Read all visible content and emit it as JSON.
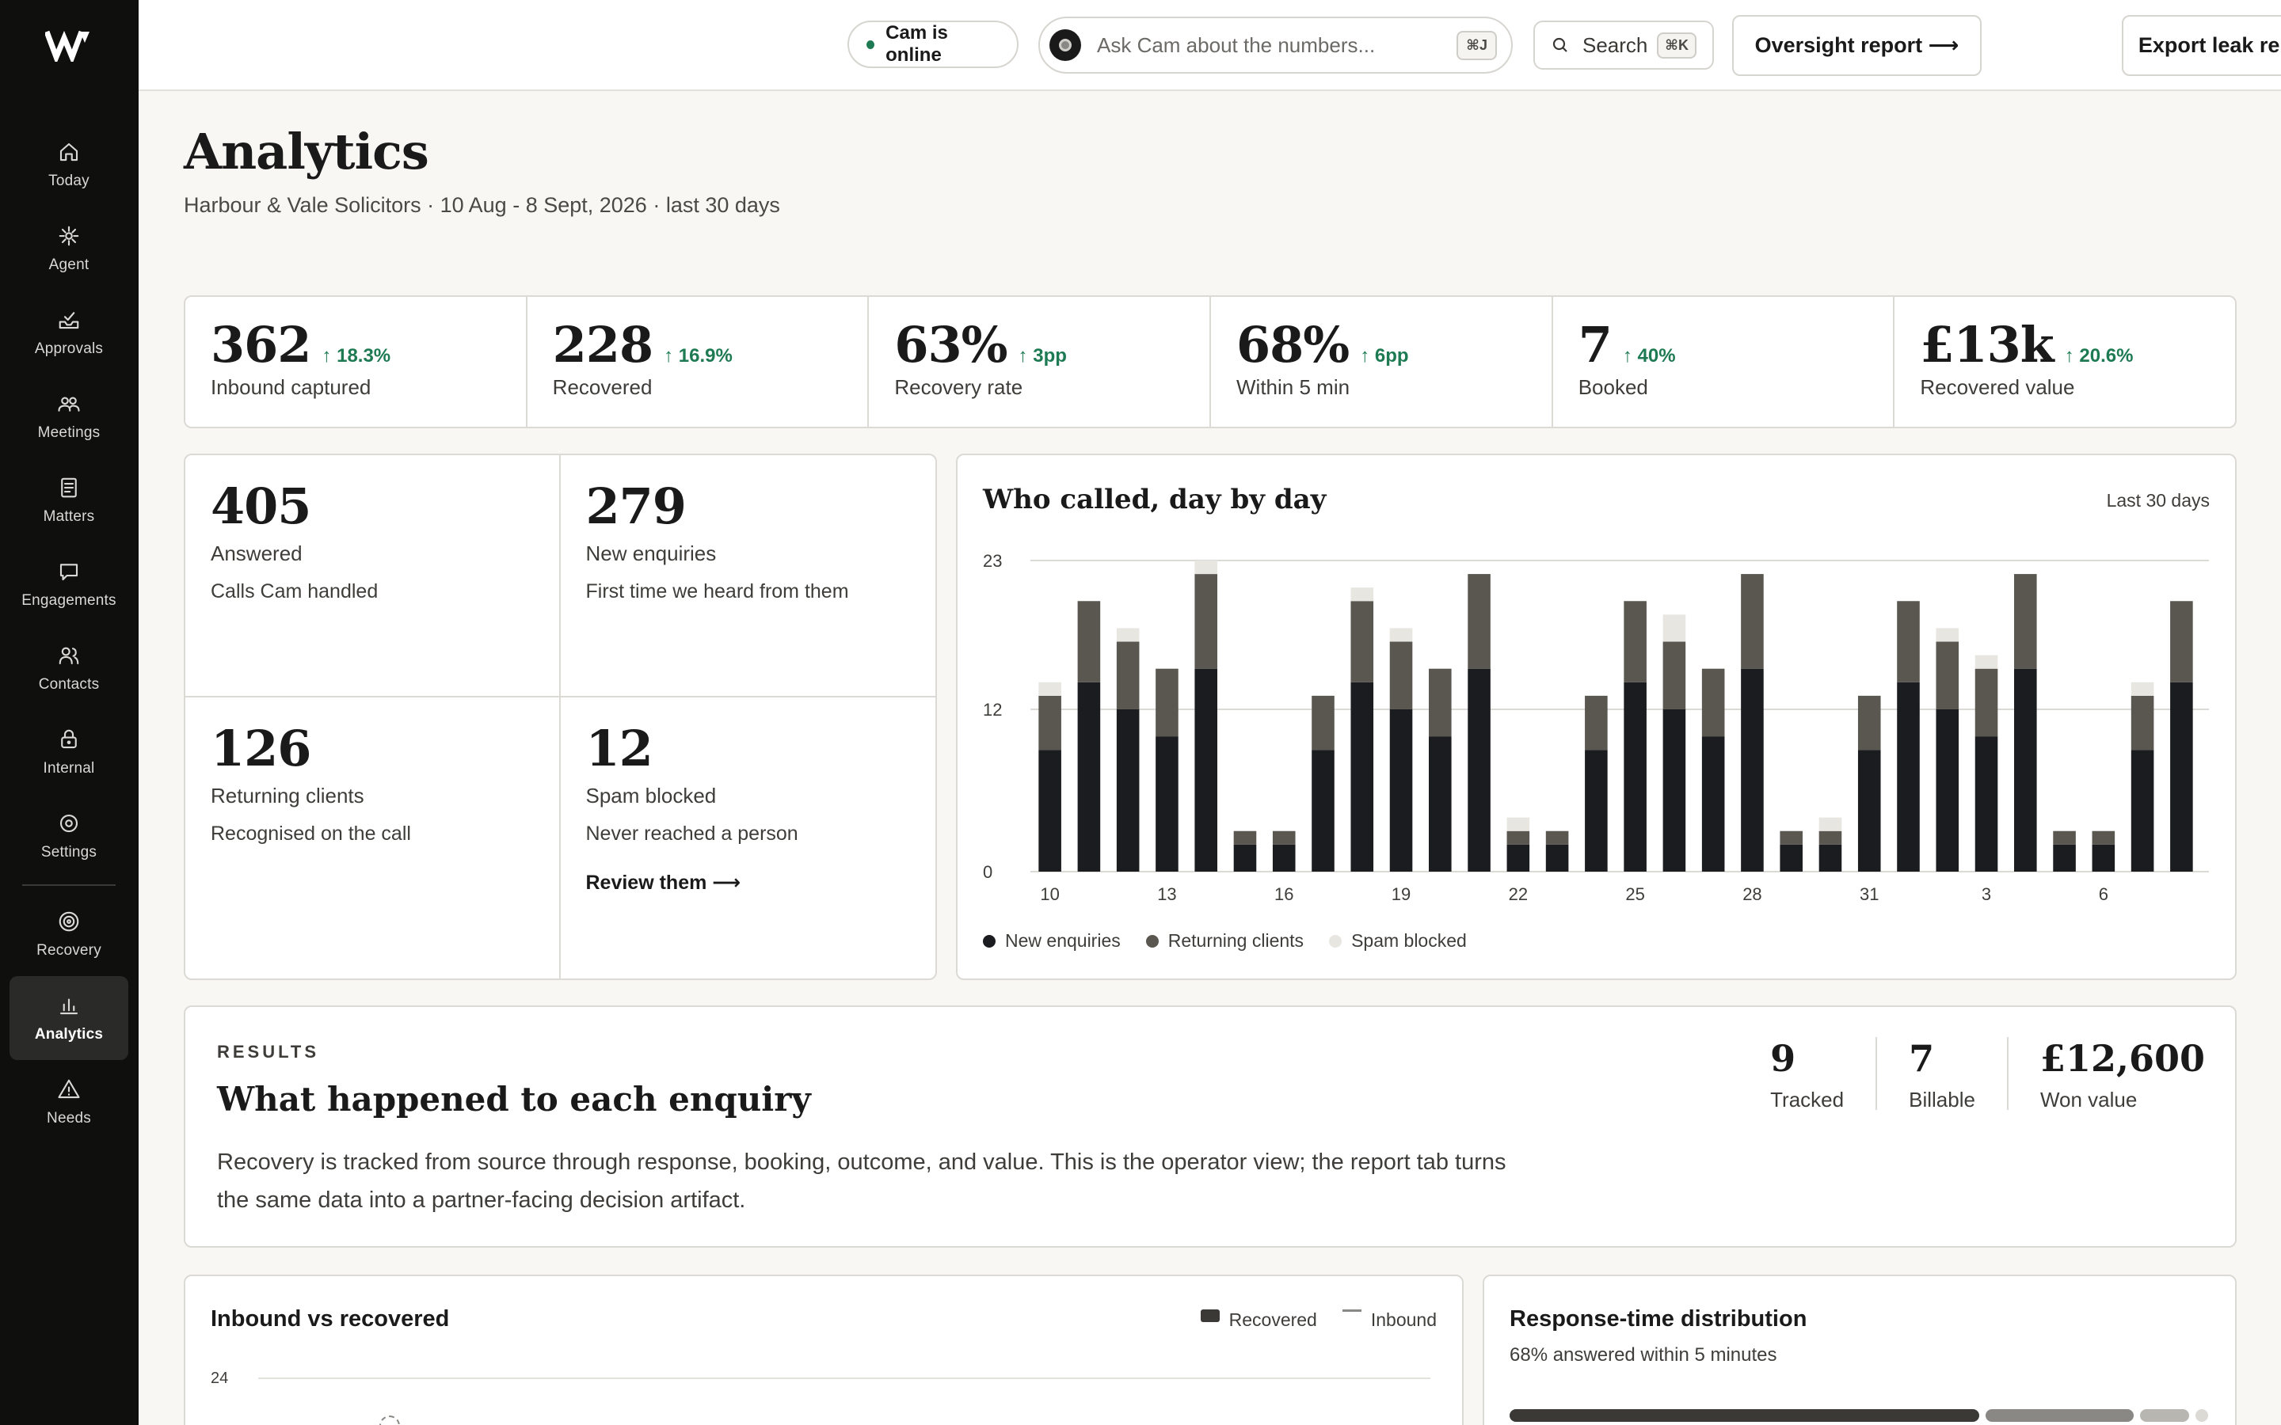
{
  "sidebar": {
    "items": [
      {
        "label": "Today",
        "icon": "home-icon"
      },
      {
        "label": "Agent",
        "icon": "sparkle-icon"
      },
      {
        "label": "Approvals",
        "icon": "inbox-icon"
      },
      {
        "label": "Meetings",
        "icon": "people-icon"
      },
      {
        "label": "Matters",
        "icon": "document-icon"
      },
      {
        "label": "Engagements",
        "icon": "chat-icon"
      },
      {
        "label": "Contacts",
        "icon": "contacts-icon"
      },
      {
        "label": "Internal",
        "icon": "lock-icon"
      },
      {
        "label": "Settings",
        "icon": "gear-icon"
      }
    ],
    "secondary": [
      {
        "label": "Recovery",
        "icon": "target-icon"
      },
      {
        "label": "Analytics",
        "icon": "bar-chart-icon",
        "active": true
      },
      {
        "label": "Needs",
        "icon": "warning-icon"
      }
    ]
  },
  "topbar": {
    "status": "Cam is online",
    "ask_placeholder": "Ask Cam about the numbers...",
    "ask_shortcut": "⌘J",
    "search_label": "Search",
    "search_shortcut": "⌘K",
    "oversight_button": "Oversight report ⟶",
    "export_button": "Export leak report ⟶"
  },
  "header": {
    "title": "Analytics",
    "subtitle": "Harbour & Vale Solicitors · 10 Aug - 8 Sept, 2026 · last 30 days"
  },
  "kpis": [
    {
      "value": "362",
      "delta": "↑ 18.3%",
      "label": "Inbound captured"
    },
    {
      "value": "228",
      "delta": "↑ 16.9%",
      "label": "Recovered"
    },
    {
      "value": "63%",
      "delta": "↑ 3pp",
      "label": "Recovery rate"
    },
    {
      "value": "68%",
      "delta": "↑ 6pp",
      "label": "Within 5 min"
    },
    {
      "value": "7",
      "delta": "↑ 40%",
      "label": "Booked"
    },
    {
      "value": "£13k",
      "delta": "↑ 20.6%",
      "label": "Recovered value"
    }
  ],
  "stats": [
    {
      "value": "405",
      "label": "Answered",
      "desc": "Calls Cam handled"
    },
    {
      "value": "279",
      "label": "New enquiries",
      "desc": "First time we heard from them"
    },
    {
      "value": "126",
      "label": "Returning clients",
      "desc": "Recognised on the call"
    },
    {
      "value": "12",
      "label": "Spam blocked",
      "desc": "Never reached a person",
      "link": "Review them ⟶"
    }
  ],
  "chart": {
    "title": "Who called, day by day",
    "range": "Last 30 days"
  },
  "chart_data": {
    "type": "bar",
    "stacked": true,
    "title": "Who called, day by day",
    "x": [
      "10",
      "11",
      "12",
      "13",
      "14",
      "15",
      "16",
      "17",
      "18",
      "19",
      "20",
      "21",
      "22",
      "23",
      "24",
      "25",
      "26",
      "27",
      "28",
      "29",
      "30",
      "31",
      "1",
      "2",
      "3",
      "4",
      "5",
      "6",
      "7",
      "8"
    ],
    "x_tick_labels": [
      "10",
      "13",
      "16",
      "19",
      "22",
      "25",
      "28",
      "31",
      "3",
      "6"
    ],
    "y_ticks": [
      0,
      12,
      23
    ],
    "ylim": [
      0,
      23
    ],
    "grid": true,
    "legend": "bottom-left",
    "series": [
      {
        "name": "New enquiries",
        "color": "#1a1c1f",
        "values": [
          9,
          14,
          12,
          10,
          15,
          2,
          2,
          9,
          14,
          12,
          10,
          15,
          2,
          2,
          9,
          14,
          12,
          10,
          15,
          2,
          2,
          9,
          14,
          12,
          10,
          15,
          2,
          2,
          9,
          14
        ]
      },
      {
        "name": "Returning clients",
        "color": "#5a5650",
        "values": [
          4,
          6,
          5,
          5,
          7,
          1,
          1,
          4,
          6,
          5,
          5,
          7,
          1,
          1,
          4,
          6,
          5,
          5,
          7,
          1,
          1,
          4,
          6,
          5,
          5,
          7,
          1,
          1,
          4,
          6
        ]
      },
      {
        "name": "Spam blocked",
        "color": "#e8e6e1",
        "values": [
          1,
          0,
          1,
          0,
          1,
          0,
          0,
          0,
          1,
          1,
          0,
          0,
          1,
          0,
          0,
          0,
          2,
          0,
          0,
          0,
          1,
          0,
          0,
          1,
          1,
          0,
          0,
          0,
          1,
          0
        ]
      }
    ]
  },
  "results": {
    "eyebrow": "RESULTS",
    "title": "What happened to each enquiry",
    "body": "Recovery is tracked from source through response, booking, outcome, and value. This is the operator view; the report tab turns the same data into a partner-facing decision artifact.",
    "metrics": [
      {
        "value": "9",
        "label": "Tracked"
      },
      {
        "value": "7",
        "label": "Billable"
      },
      {
        "value": "£12,600",
        "label": "Won value"
      }
    ]
  },
  "inbound_vs_recovered": {
    "title": "Inbound vs recovered",
    "legend_recovered": "Recovered",
    "legend_inbound": "Inbound",
    "tick_top": "24"
  },
  "response_time": {
    "title": "Response-time distribution",
    "subtitle": "68% answered within 5 minutes",
    "bands": [
      0.68,
      0.22,
      0.08,
      0.02
    ],
    "colors": [
      "#3a3936",
      "#8a8884",
      "#b8b6b1",
      "#dcdad5"
    ]
  }
}
